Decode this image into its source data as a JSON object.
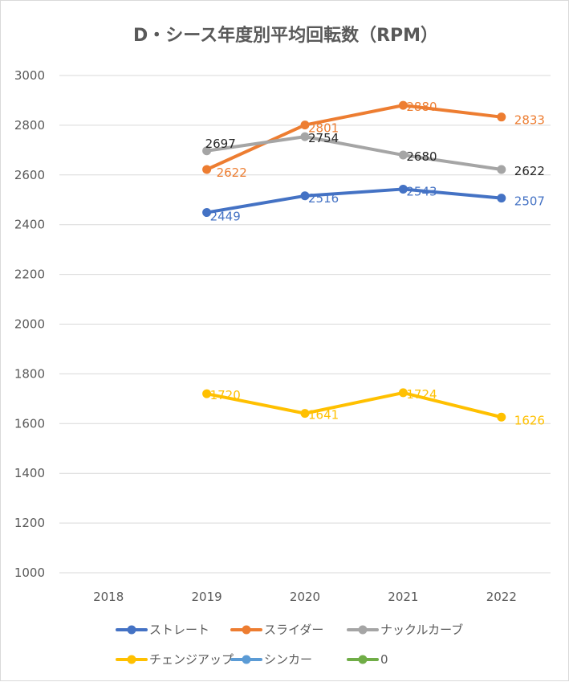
{
  "chart_data": {
    "type": "line",
    "title": "D・シース年度別平均回転数（RPM）",
    "categories": [
      "2018",
      "2019",
      "2020",
      "2021",
      "2022"
    ],
    "ylim": [
      1000,
      3000
    ],
    "yticks": [
      1000,
      1200,
      1400,
      1600,
      1800,
      2000,
      2200,
      2400,
      2600,
      2800,
      3000
    ],
    "grid": true,
    "legend_position": "bottom",
    "series": [
      {
        "name": "ストレート",
        "color": "#4472c4",
        "label_color": "#4472c4",
        "values": [
          null,
          2449,
          2516,
          2543,
          2507
        ]
      },
      {
        "name": "スライダー",
        "color": "#ed7d31",
        "label_color": "#ed7d31",
        "values": [
          null,
          2622,
          2801,
          2880,
          2833
        ]
      },
      {
        "name": "ナックルカーブ",
        "color": "#a5a5a5",
        "label_color": "#262626",
        "values": [
          null,
          2697,
          2754,
          2680,
          2622
        ]
      },
      {
        "name": "チェンジアップ",
        "color": "#ffc000",
        "label_color": "#ffc000",
        "values": [
          null,
          1720,
          1641,
          1724,
          1626
        ]
      },
      {
        "name": "シンカー",
        "color": "#5b9bd5",
        "label_color": "#5b9bd5",
        "values": [
          null,
          null,
          null,
          null,
          null
        ]
      },
      {
        "name": "0",
        "color": "#70ad47",
        "label_color": "#70ad47",
        "values": [
          null,
          null,
          null,
          null,
          null
        ]
      }
    ]
  }
}
